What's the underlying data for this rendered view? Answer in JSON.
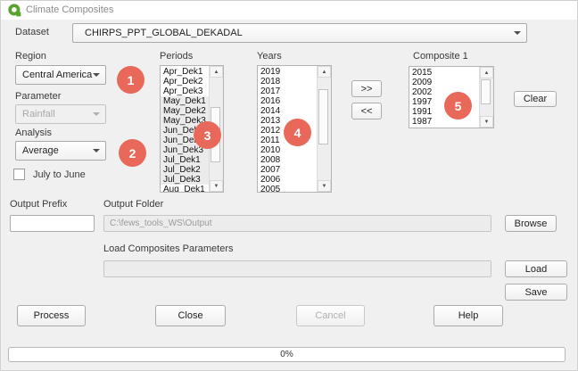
{
  "window": {
    "title": "Climate Composites"
  },
  "colors": {
    "badge": "#E8695A",
    "logo_green": "#58A32D"
  },
  "dataset": {
    "label": "Dataset",
    "value": "CHIRPS_PPT_GLOBAL_DEKADAL"
  },
  "region": {
    "label": "Region",
    "value": "Central America"
  },
  "parameter": {
    "label": "Parameter",
    "value": "Rainfall",
    "disabled": true
  },
  "analysis": {
    "label": "Analysis",
    "value": "Average"
  },
  "july_to_june": {
    "label": "July to June",
    "checked": false
  },
  "periods": {
    "label": "Periods",
    "items": [
      "Apr_Dek1",
      "Apr_Dek2",
      "Apr_Dek3",
      "May_Dek1",
      "May_Dek2",
      "May_Dek3",
      "Jun_Dek1",
      "Jun_Dek2",
      "Jun_Dek3",
      "Jul_Dek1",
      "Jul_Dek2",
      "Jul_Dek3",
      "Aug_Dek1"
    ],
    "selected": [
      "May_Dek1",
      "May_Dek2",
      "May_Dek3",
      "Jun_Dek1",
      "Jun_Dek2",
      "Jun_Dek3",
      "Jul_Dek1",
      "Jul_Dek2",
      "Jul_Dek3"
    ]
  },
  "years": {
    "label": "Years",
    "items": [
      "2019",
      "2018",
      "2017",
      "2016",
      "2014",
      "2013",
      "2012",
      "2011",
      "2010",
      "2008",
      "2007",
      "2006",
      "2005"
    ]
  },
  "transfer_buttons": {
    "add": ">>",
    "remove": "<<"
  },
  "composite1": {
    "label": "Composite 1",
    "items": [
      "2015",
      "2009",
      "2002",
      "1997",
      "1991",
      "1987"
    ]
  },
  "clear_button": "Clear",
  "output_prefix": {
    "label": "Output Prefix",
    "value": ""
  },
  "output_folder": {
    "label": "Output Folder",
    "value": "C:\\fews_tools_WS\\Output",
    "browse": "Browse"
  },
  "load_parameters": {
    "label": "Load Composites Parameters",
    "value": "",
    "load": "Load",
    "save": "Save"
  },
  "actions": {
    "process": "Process",
    "close": "Close",
    "cancel": "Cancel",
    "help": "Help"
  },
  "progress": {
    "label": "0%",
    "percent": 0
  },
  "annotations": [
    "1",
    "2",
    "3",
    "4",
    "5"
  ]
}
